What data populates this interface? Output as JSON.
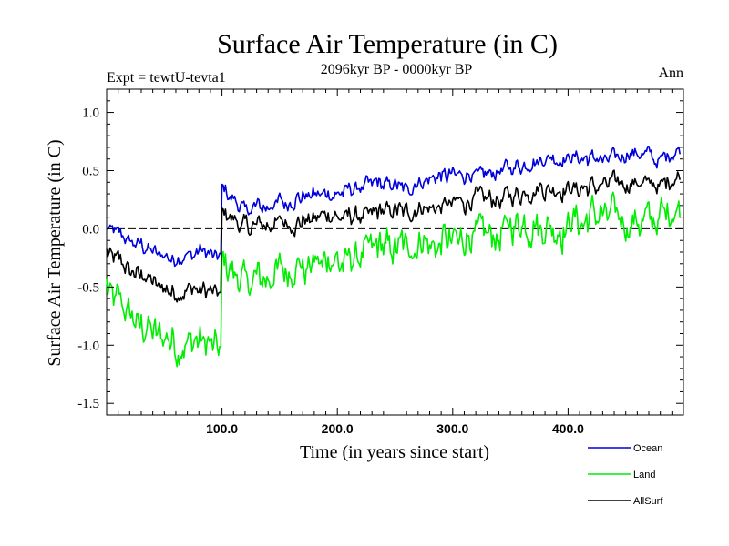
{
  "chart_data": {
    "type": "line",
    "title": "Surface Air Temperature (in C)",
    "subtitle": "2096kyr BP - 0000kyr BP",
    "left_label": "Expt = tewtU-tevta1",
    "right_label": "Ann",
    "xlabel": "Time (in years since start)",
    "ylabel": "Surface Air Temperature (in C)",
    "xlim": [
      0,
      500
    ],
    "ylim": [
      -1.6,
      1.2
    ],
    "x_ticks": [
      100,
      200,
      300,
      400
    ],
    "x_tick_labels": [
      "100.0",
      "200.0",
      "300.0",
      "400.0"
    ],
    "y_ticks": [
      -1.5,
      -1.0,
      -0.5,
      0.0,
      0.5,
      1.0
    ],
    "y_tick_labels": [
      "-1.5",
      "-1.0",
      "-0.5",
      "0.0",
      "0.5",
      "1.0"
    ],
    "reference_line": 0.0,
    "x": [
      0,
      20,
      40,
      60,
      80,
      99,
      100,
      120,
      140,
      160,
      180,
      200,
      220,
      240,
      260,
      280,
      300,
      320,
      340,
      360,
      380,
      400,
      420,
      440,
      460,
      480,
      500
    ],
    "series": [
      {
        "name": "Ocean",
        "color": "#0000dd",
        "values": [
          0.0,
          -0.1,
          -0.2,
          -0.25,
          -0.2,
          -0.25,
          0.35,
          0.15,
          0.2,
          0.25,
          0.3,
          0.3,
          0.35,
          0.4,
          0.35,
          0.45,
          0.45,
          0.45,
          0.5,
          0.55,
          0.6,
          0.6,
          0.6,
          0.6,
          0.65,
          0.6,
          0.7
        ]
      },
      {
        "name": "Land",
        "color": "#00ee00",
        "values": [
          -0.5,
          -0.75,
          -0.9,
          -1.0,
          -0.95,
          -1.1,
          -0.3,
          -0.5,
          -0.4,
          -0.35,
          -0.3,
          -0.3,
          -0.2,
          -0.15,
          -0.15,
          -0.1,
          -0.1,
          -0.05,
          -0.05,
          0.05,
          0.05,
          0.0,
          0.1,
          0.1,
          0.05,
          0.1,
          0.2
        ]
      },
      {
        "name": "AllSurf",
        "color": "#000000",
        "values": [
          -0.2,
          -0.35,
          -0.45,
          -0.55,
          -0.5,
          -0.6,
          0.15,
          0.0,
          0.05,
          0.05,
          0.1,
          0.1,
          0.1,
          0.15,
          0.15,
          0.2,
          0.2,
          0.25,
          0.25,
          0.3,
          0.35,
          0.35,
          0.35,
          0.4,
          0.4,
          0.35,
          0.5
        ]
      }
    ],
    "legend_position": "bottom-right"
  }
}
